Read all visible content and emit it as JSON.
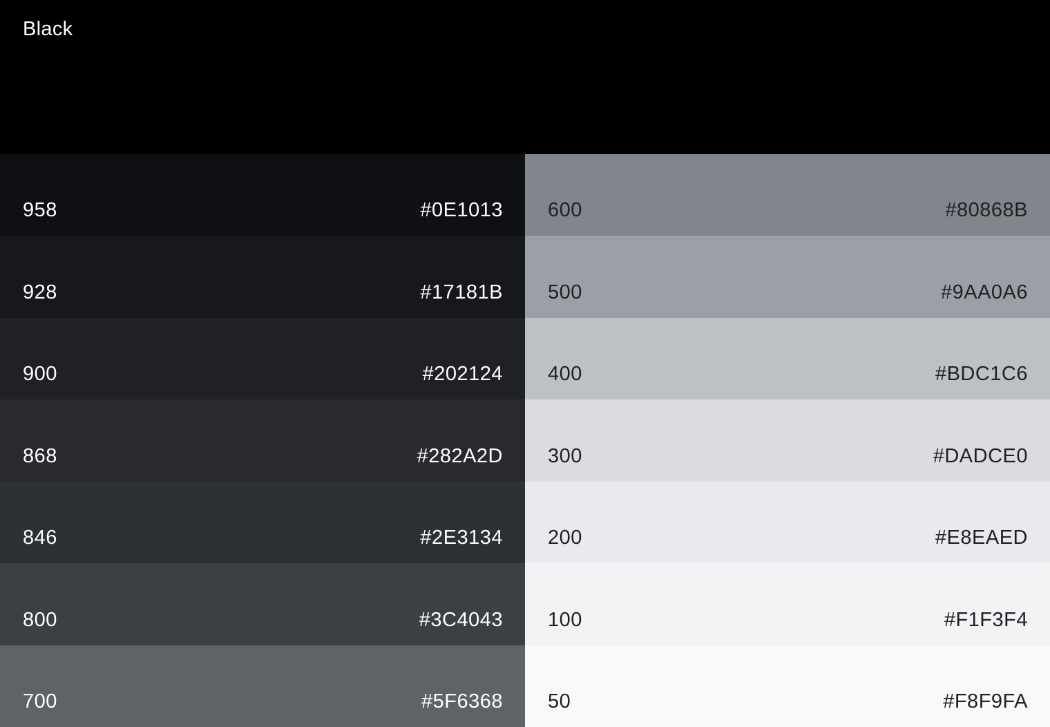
{
  "palette": {
    "title": "Black",
    "header": {
      "bg": "#000000",
      "text_color": "#FFFFFF"
    },
    "left_column": [
      {
        "tone": "958",
        "hex": "#0E1013",
        "text_color": "#FFFFFF"
      },
      {
        "tone": "928",
        "hex": "#17181B",
        "text_color": "#FFFFFF"
      },
      {
        "tone": "900",
        "hex": "#202124",
        "text_color": "#FFFFFF"
      },
      {
        "tone": "868",
        "hex": "#282A2D",
        "text_color": "#FFFFFF"
      },
      {
        "tone": "846",
        "hex": "#2E3134",
        "text_color": "#FFFFFF"
      },
      {
        "tone": "800",
        "hex": "#3C4043",
        "text_color": "#FFFFFF"
      },
      {
        "tone": "700",
        "hex": "#5F6368",
        "text_color": "#FFFFFF"
      }
    ],
    "right_column": [
      {
        "tone": "600",
        "hex": "#80868B",
        "text_color": "#202124"
      },
      {
        "tone": "500",
        "hex": "#9AA0A6",
        "text_color": "#202124"
      },
      {
        "tone": "400",
        "hex": "#BDC1C6",
        "text_color": "#202124"
      },
      {
        "tone": "300",
        "hex": "#DADCE0",
        "text_color": "#202124"
      },
      {
        "tone": "200",
        "hex": "#E8EAED",
        "text_color": "#202124"
      },
      {
        "tone": "100",
        "hex": "#F1F3F4",
        "text_color": "#202124"
      },
      {
        "tone": "50",
        "hex": "#F8F9FA",
        "text_color": "#202124"
      }
    ]
  }
}
